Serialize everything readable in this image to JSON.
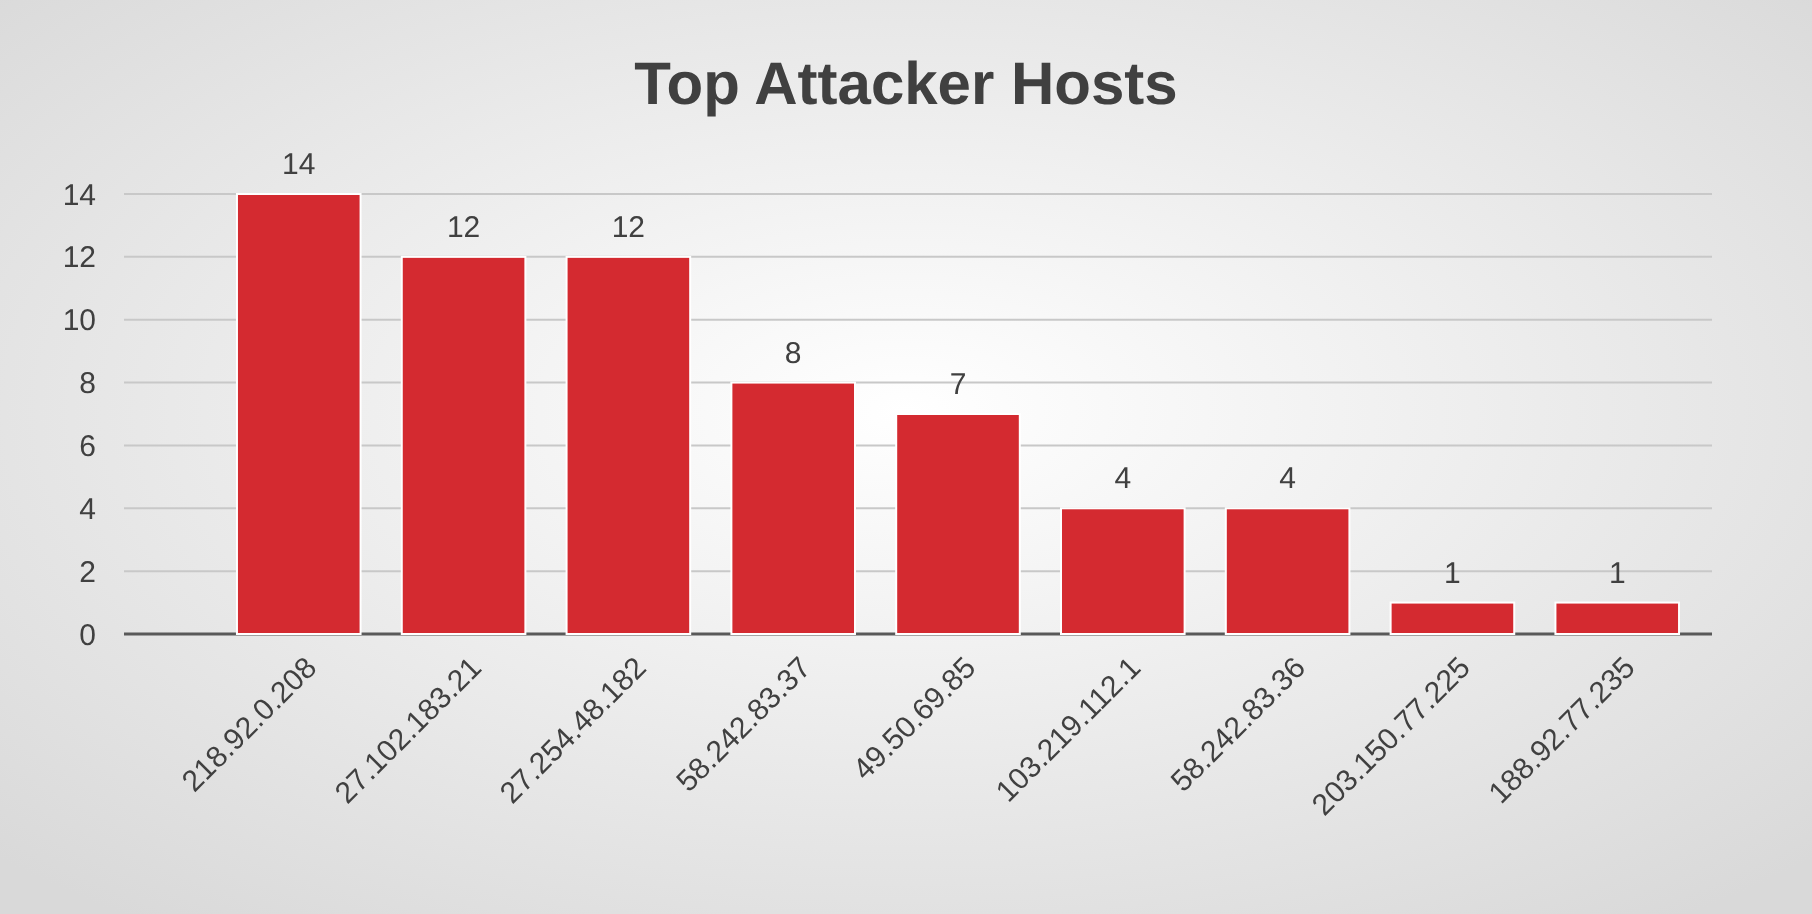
{
  "chart_data": {
    "type": "bar",
    "title": "Top Attacker Hosts",
    "categories": [
      "218.92.0.208",
      "27.102.183.21",
      "27.254.48.182",
      "58.242.83.37",
      "49.50.69.85",
      "103.219.112.1",
      "58.242.83.36",
      "203.150.77.225",
      "188.92.77.235"
    ],
    "values": [
      14,
      12,
      12,
      8,
      7,
      4,
      4,
      1,
      1
    ],
    "color": "#d42a30",
    "ylim": [
      0,
      14
    ],
    "yticks": [
      0,
      2,
      4,
      6,
      8,
      10,
      12,
      14
    ],
    "grid": "y",
    "data_labels": true
  }
}
